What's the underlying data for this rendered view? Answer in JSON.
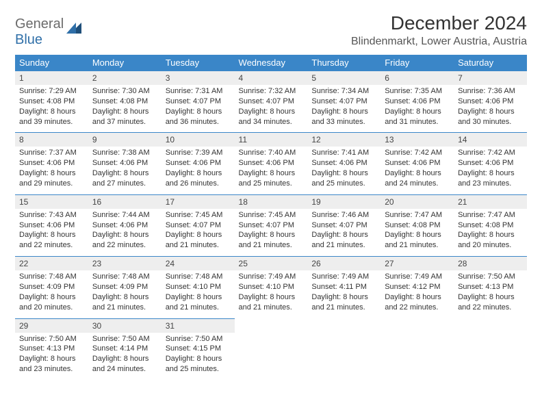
{
  "logo": {
    "part1": "General",
    "part2": "Blue"
  },
  "title": "December 2024",
  "location": "Blindenmarkt, Lower Austria, Austria",
  "colors": {
    "header_bg": "#3a86c8",
    "header_fg": "#ffffff",
    "daynum_bg": "#eeeeee",
    "border": "#3a86c8",
    "logo_gray": "#6b6b6b",
    "logo_blue": "#2f6fa8"
  },
  "weekdays": [
    "Sunday",
    "Monday",
    "Tuesday",
    "Wednesday",
    "Thursday",
    "Friday",
    "Saturday"
  ],
  "weeks": [
    [
      {
        "n": "1",
        "sr": "Sunrise: 7:29 AM",
        "ss": "Sunset: 4:08 PM",
        "d1": "Daylight: 8 hours",
        "d2": "and 39 minutes."
      },
      {
        "n": "2",
        "sr": "Sunrise: 7:30 AM",
        "ss": "Sunset: 4:08 PM",
        "d1": "Daylight: 8 hours",
        "d2": "and 37 minutes."
      },
      {
        "n": "3",
        "sr": "Sunrise: 7:31 AM",
        "ss": "Sunset: 4:07 PM",
        "d1": "Daylight: 8 hours",
        "d2": "and 36 minutes."
      },
      {
        "n": "4",
        "sr": "Sunrise: 7:32 AM",
        "ss": "Sunset: 4:07 PM",
        "d1": "Daylight: 8 hours",
        "d2": "and 34 minutes."
      },
      {
        "n": "5",
        "sr": "Sunrise: 7:34 AM",
        "ss": "Sunset: 4:07 PM",
        "d1": "Daylight: 8 hours",
        "d2": "and 33 minutes."
      },
      {
        "n": "6",
        "sr": "Sunrise: 7:35 AM",
        "ss": "Sunset: 4:06 PM",
        "d1": "Daylight: 8 hours",
        "d2": "and 31 minutes."
      },
      {
        "n": "7",
        "sr": "Sunrise: 7:36 AM",
        "ss": "Sunset: 4:06 PM",
        "d1": "Daylight: 8 hours",
        "d2": "and 30 minutes."
      }
    ],
    [
      {
        "n": "8",
        "sr": "Sunrise: 7:37 AM",
        "ss": "Sunset: 4:06 PM",
        "d1": "Daylight: 8 hours",
        "d2": "and 29 minutes."
      },
      {
        "n": "9",
        "sr": "Sunrise: 7:38 AM",
        "ss": "Sunset: 4:06 PM",
        "d1": "Daylight: 8 hours",
        "d2": "and 27 minutes."
      },
      {
        "n": "10",
        "sr": "Sunrise: 7:39 AM",
        "ss": "Sunset: 4:06 PM",
        "d1": "Daylight: 8 hours",
        "d2": "and 26 minutes."
      },
      {
        "n": "11",
        "sr": "Sunrise: 7:40 AM",
        "ss": "Sunset: 4:06 PM",
        "d1": "Daylight: 8 hours",
        "d2": "and 25 minutes."
      },
      {
        "n": "12",
        "sr": "Sunrise: 7:41 AM",
        "ss": "Sunset: 4:06 PM",
        "d1": "Daylight: 8 hours",
        "d2": "and 25 minutes."
      },
      {
        "n": "13",
        "sr": "Sunrise: 7:42 AM",
        "ss": "Sunset: 4:06 PM",
        "d1": "Daylight: 8 hours",
        "d2": "and 24 minutes."
      },
      {
        "n": "14",
        "sr": "Sunrise: 7:42 AM",
        "ss": "Sunset: 4:06 PM",
        "d1": "Daylight: 8 hours",
        "d2": "and 23 minutes."
      }
    ],
    [
      {
        "n": "15",
        "sr": "Sunrise: 7:43 AM",
        "ss": "Sunset: 4:06 PM",
        "d1": "Daylight: 8 hours",
        "d2": "and 22 minutes."
      },
      {
        "n": "16",
        "sr": "Sunrise: 7:44 AM",
        "ss": "Sunset: 4:06 PM",
        "d1": "Daylight: 8 hours",
        "d2": "and 22 minutes."
      },
      {
        "n": "17",
        "sr": "Sunrise: 7:45 AM",
        "ss": "Sunset: 4:07 PM",
        "d1": "Daylight: 8 hours",
        "d2": "and 21 minutes."
      },
      {
        "n": "18",
        "sr": "Sunrise: 7:45 AM",
        "ss": "Sunset: 4:07 PM",
        "d1": "Daylight: 8 hours",
        "d2": "and 21 minutes."
      },
      {
        "n": "19",
        "sr": "Sunrise: 7:46 AM",
        "ss": "Sunset: 4:07 PM",
        "d1": "Daylight: 8 hours",
        "d2": "and 21 minutes."
      },
      {
        "n": "20",
        "sr": "Sunrise: 7:47 AM",
        "ss": "Sunset: 4:08 PM",
        "d1": "Daylight: 8 hours",
        "d2": "and 21 minutes."
      },
      {
        "n": "21",
        "sr": "Sunrise: 7:47 AM",
        "ss": "Sunset: 4:08 PM",
        "d1": "Daylight: 8 hours",
        "d2": "and 20 minutes."
      }
    ],
    [
      {
        "n": "22",
        "sr": "Sunrise: 7:48 AM",
        "ss": "Sunset: 4:09 PM",
        "d1": "Daylight: 8 hours",
        "d2": "and 20 minutes."
      },
      {
        "n": "23",
        "sr": "Sunrise: 7:48 AM",
        "ss": "Sunset: 4:09 PM",
        "d1": "Daylight: 8 hours",
        "d2": "and 21 minutes."
      },
      {
        "n": "24",
        "sr": "Sunrise: 7:48 AM",
        "ss": "Sunset: 4:10 PM",
        "d1": "Daylight: 8 hours",
        "d2": "and 21 minutes."
      },
      {
        "n": "25",
        "sr": "Sunrise: 7:49 AM",
        "ss": "Sunset: 4:10 PM",
        "d1": "Daylight: 8 hours",
        "d2": "and 21 minutes."
      },
      {
        "n": "26",
        "sr": "Sunrise: 7:49 AM",
        "ss": "Sunset: 4:11 PM",
        "d1": "Daylight: 8 hours",
        "d2": "and 21 minutes."
      },
      {
        "n": "27",
        "sr": "Sunrise: 7:49 AM",
        "ss": "Sunset: 4:12 PM",
        "d1": "Daylight: 8 hours",
        "d2": "and 22 minutes."
      },
      {
        "n": "28",
        "sr": "Sunrise: 7:50 AM",
        "ss": "Sunset: 4:13 PM",
        "d1": "Daylight: 8 hours",
        "d2": "and 22 minutes."
      }
    ],
    [
      {
        "n": "29",
        "sr": "Sunrise: 7:50 AM",
        "ss": "Sunset: 4:13 PM",
        "d1": "Daylight: 8 hours",
        "d2": "and 23 minutes."
      },
      {
        "n": "30",
        "sr": "Sunrise: 7:50 AM",
        "ss": "Sunset: 4:14 PM",
        "d1": "Daylight: 8 hours",
        "d2": "and 24 minutes."
      },
      {
        "n": "31",
        "sr": "Sunrise: 7:50 AM",
        "ss": "Sunset: 4:15 PM",
        "d1": "Daylight: 8 hours",
        "d2": "and 25 minutes."
      },
      null,
      null,
      null,
      null
    ]
  ]
}
